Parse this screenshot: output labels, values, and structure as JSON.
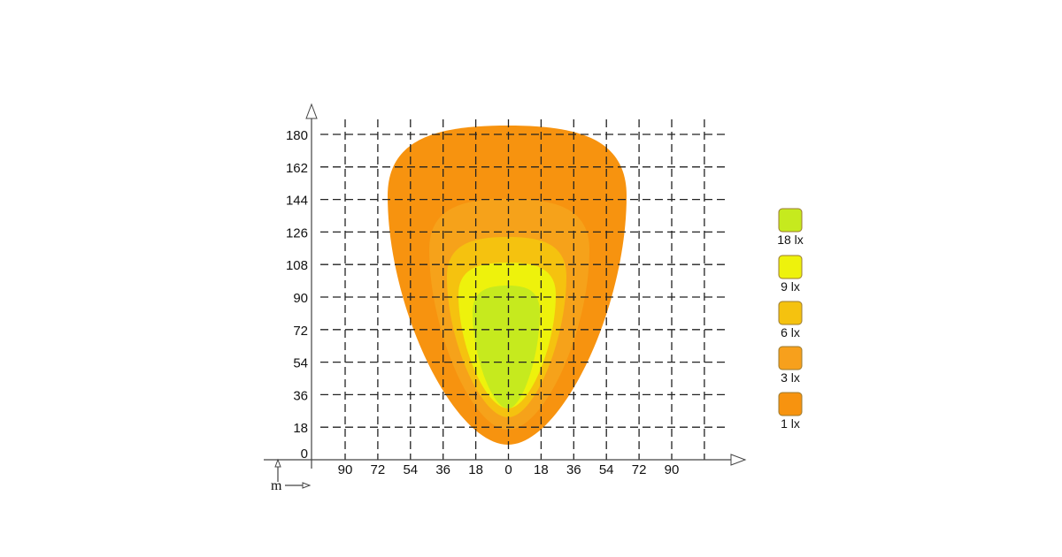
{
  "y_axis": {
    "labels": [
      "0",
      "18",
      "36",
      "54",
      "72",
      "90",
      "108",
      "126",
      "144",
      "162",
      "180"
    ]
  },
  "x_axis": {
    "labels": [
      "90",
      "72",
      "54",
      "36",
      "18",
      "0",
      "18",
      "36",
      "54",
      "72",
      "90"
    ]
  },
  "unit": "m",
  "legend": {
    "items": [
      "18 lx",
      "9 lx",
      "6 lx",
      "3 lx",
      "1 lx"
    ]
  }
}
